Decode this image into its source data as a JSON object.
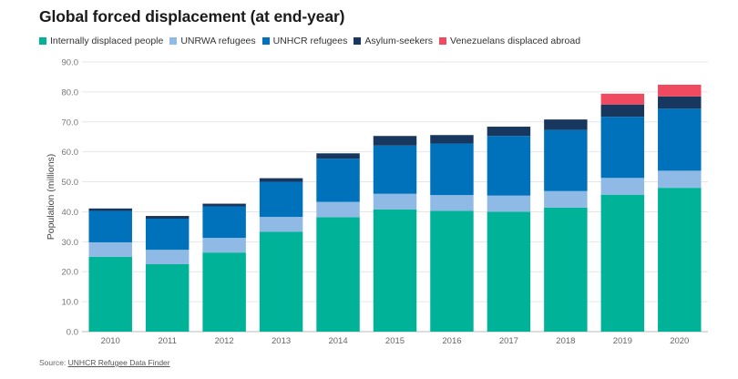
{
  "title": "Global forced displacement (at end-year)",
  "source": {
    "prefix": "Source: ",
    "link_text": "UNHCR Refugee Data Finder"
  },
  "chart_data": {
    "type": "bar",
    "stacked": true,
    "title": "Global forced displacement (at end-year)",
    "ylabel": "Population (millions)",
    "xlabel": "",
    "ylim": [
      0,
      90
    ],
    "yticks": [
      "0.0",
      "10.0",
      "20.0",
      "30.0",
      "40.0",
      "50.0",
      "60.0",
      "70.0",
      "80.0",
      "90.0"
    ],
    "grid": true,
    "legend_position": "top-left",
    "categories": [
      "2010",
      "2011",
      "2012",
      "2013",
      "2014",
      "2015",
      "2016",
      "2017",
      "2018",
      "2019",
      "2020"
    ],
    "series": [
      {
        "name": "Internally displaced people",
        "color": "#00b398",
        "values": [
          25.0,
          22.5,
          26.4,
          33.3,
          38.2,
          40.8,
          40.3,
          40.0,
          41.4,
          45.7,
          48.0
        ]
      },
      {
        "name": "UNRWA refugees",
        "color": "#8ebae5",
        "values": [
          4.8,
          4.8,
          4.9,
          5.0,
          5.1,
          5.2,
          5.3,
          5.4,
          5.5,
          5.6,
          5.7
        ]
      },
      {
        "name": "UNHCR refugees",
        "color": "#0072bc",
        "values": [
          10.5,
          10.4,
          10.5,
          11.7,
          14.4,
          16.1,
          17.2,
          19.9,
          20.4,
          20.4,
          20.7
        ]
      },
      {
        "name": "Asylum-seekers",
        "color": "#18375f",
        "values": [
          0.8,
          0.9,
          0.9,
          1.2,
          1.8,
          3.2,
          2.8,
          3.1,
          3.5,
          4.1,
          4.1
        ]
      },
      {
        "name": "Venezuelans displaced abroad",
        "color": "#ef4a60",
        "values": [
          0,
          0,
          0,
          0,
          0,
          0,
          0,
          0,
          0,
          3.6,
          3.9
        ]
      }
    ]
  }
}
